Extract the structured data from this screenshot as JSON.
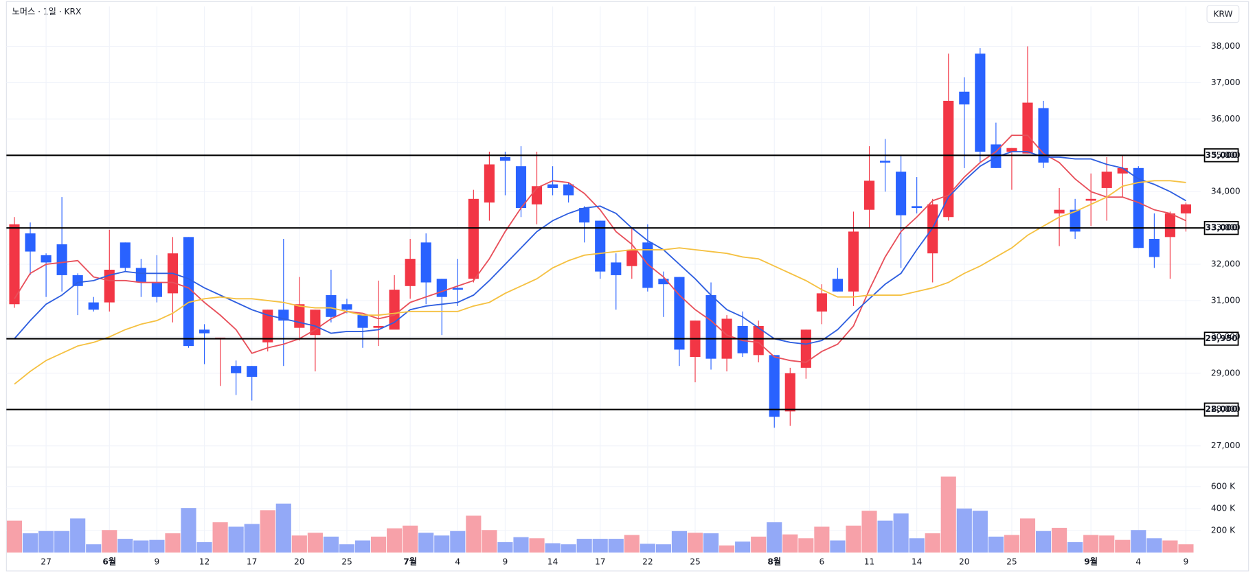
{
  "chart_data": {
    "type": "candlestick",
    "title": "노머스 · 1일 · KRX",
    "currency": "KRW",
    "categories": [
      null,
      null,
      "27",
      null,
      null,
      null,
      "6월",
      null,
      null,
      "9",
      null,
      null,
      "12",
      null,
      null,
      "17",
      null,
      null,
      "20",
      null,
      null,
      "25",
      null,
      null,
      null,
      "7월",
      null,
      null,
      "4",
      null,
      null,
      "9",
      null,
      null,
      "14",
      null,
      null,
      "17",
      null,
      null,
      "22",
      null,
      null,
      "25",
      null,
      null,
      null,
      null,
      "8월",
      null,
      null,
      "6",
      null,
      null,
      "11",
      null,
      null,
      "14",
      null,
      null,
      "20",
      null,
      null,
      "25",
      null,
      null,
      null,
      null,
      "9월",
      null,
      null,
      "4",
      null,
      null,
      "9"
    ],
    "open": [
      30900,
      32850,
      32250,
      32550,
      31700,
      30950,
      30950,
      32600,
      31900,
      31500,
      31200,
      32750,
      30200,
      29950,
      29200,
      29200,
      29850,
      30750,
      30250,
      30050,
      31150,
      30900,
      30600,
      30250,
      30200,
      31400,
      32600,
      31600,
      31350,
      31600,
      33700,
      34950,
      34700,
      33650,
      34200,
      34200,
      33550,
      33200,
      32050,
      31950,
      32600,
      31600,
      31650,
      29450,
      31150,
      29400,
      30300,
      29500,
      29500,
      27950,
      29150,
      30700,
      31600,
      31250,
      33500,
      34850,
      34550,
      33600,
      32300,
      33300,
      36750,
      37800,
      35300,
      35100,
      35050,
      36300,
      33400,
      33500,
      33750,
      34100,
      34500,
      34650,
      32700,
      32750,
      33400
    ],
    "high": [
      33300,
      33150,
      32300,
      33850,
      31750,
      31100,
      32950,
      32600,
      32150,
      32250,
      32750,
      32750,
      30350,
      29980,
      29350,
      29200,
      30750,
      32700,
      31650,
      30750,
      31850,
      31050,
      30600,
      31550,
      31700,
      32700,
      32850,
      31600,
      32150,
      34050,
      35100,
      35100,
      35250,
      35100,
      34700,
      34250,
      33600,
      33200,
      32300,
      33000,
      33100,
      31800,
      31650,
      30450,
      31500,
      30600,
      30700,
      30450,
      29500,
      29150,
      30200,
      31450,
      31900,
      33450,
      35250,
      35450,
      35000,
      34400,
      33800,
      37800,
      37150,
      37950,
      35900,
      35200,
      38000,
      36500,
      34100,
      33800,
      34500,
      34950,
      35000,
      34700,
      33400,
      33450,
      33700
    ],
    "low": [
      30800,
      31700,
      31100,
      31250,
      30600,
      30700,
      30700,
      31800,
      31100,
      30950,
      30400,
      29700,
      29250,
      28650,
      28400,
      28250,
      29600,
      29200,
      29900,
      29050,
      30400,
      30650,
      29700,
      29750,
      30250,
      31050,
      30900,
      30050,
      30850,
      31500,
      33200,
      33900,
      33300,
      33100,
      33900,
      33700,
      32600,
      31600,
      30750,
      31600,
      31250,
      30550,
      29200,
      28750,
      29100,
      29050,
      29450,
      29300,
      27500,
      27550,
      28850,
      30350,
      31250,
      30850,
      33000,
      34000,
      31900,
      33400,
      31500,
      33200,
      34650,
      34800,
      34650,
      34050,
      35050,
      34650,
      32500,
      32700,
      33050,
      33200,
      33850,
      32450,
      31900,
      31600,
      32900
    ],
    "close": [
      33100,
      32350,
      32050,
      31700,
      31400,
      30750,
      31850,
      31900,
      31500,
      31100,
      32300,
      29750,
      30100,
      29980,
      29000,
      28900,
      30750,
      30450,
      30900,
      30750,
      30550,
      30750,
      30250,
      30300,
      31300,
      32150,
      31500,
      31100,
      31300,
      33800,
      34750,
      34850,
      33550,
      34150,
      34100,
      33900,
      33150,
      31800,
      31700,
      32400,
      31350,
      31450,
      29650,
      30450,
      29400,
      30500,
      29550,
      30300,
      27800,
      29000,
      30200,
      31200,
      31250,
      32900,
      34300,
      34800,
      33350,
      33550,
      33650,
      36500,
      36400,
      35100,
      34650,
      35200,
      36450,
      34800,
      33500,
      32900,
      33800,
      34550,
      34650,
      32450,
      32200,
      33400,
      33650
    ],
    "up_color": "#f23645",
    "down_color": "#2962ff",
    "ylim": [
      26440,
      39100
    ],
    "yticks": [
      {
        "value": 27000,
        "label": "27,000"
      },
      {
        "value": 28000,
        "label": "28,000"
      },
      {
        "value": 29000,
        "label": "29,000"
      },
      {
        "value": 30000,
        "label": "30,000"
      },
      {
        "value": 31000,
        "label": "31,000"
      },
      {
        "value": 32000,
        "label": "32,000"
      },
      {
        "value": 33000,
        "label": "33,000"
      },
      {
        "value": 34000,
        "label": "34,000"
      },
      {
        "value": 35000,
        "label": "35,000"
      },
      {
        "value": 36000,
        "label": "36,000"
      },
      {
        "value": 37000,
        "label": "37,000"
      },
      {
        "value": 38000,
        "label": "38,000"
      }
    ],
    "levels": [
      {
        "value": 35000,
        "label": "35,000"
      },
      {
        "value": 33000,
        "label": "33,000"
      },
      {
        "value": 29950,
        "label": "29,950"
      },
      {
        "value": 28000,
        "label": "28,000"
      }
    ],
    "ma": [
      {
        "color": "#e8505b",
        "values": [
          31050,
          31750,
          32000,
          32050,
          32100,
          31650,
          31550,
          31550,
          31500,
          31500,
          31500,
          31350,
          30950,
          30600,
          30200,
          29550,
          29700,
          29800,
          29950,
          30200,
          30500,
          30700,
          30650,
          30500,
          30600,
          30950,
          31100,
          31250,
          31400,
          31550,
          32150,
          32900,
          33550,
          34100,
          34300,
          34250,
          33950,
          33500,
          32900,
          32550,
          32000,
          31650,
          31150,
          30750,
          30450,
          30050,
          29900,
          29850,
          29450,
          29350,
          29300,
          29600,
          29800,
          30300,
          31300,
          32200,
          32900,
          33300,
          33750,
          33900,
          34400,
          34800,
          35100,
          35550,
          35550,
          35050,
          34800,
          34350,
          34000,
          33850,
          33850,
          33700,
          33500,
          33400,
          33200
        ]
      },
      {
        "color": "#2f5fe0",
        "values": [
          29950,
          30450,
          30900,
          31150,
          31500,
          31550,
          31700,
          31800,
          31750,
          31750,
          31750,
          31600,
          31350,
          31150,
          30950,
          30750,
          30600,
          30500,
          30400,
          30300,
          30100,
          30150,
          30150,
          30200,
          30400,
          30750,
          30850,
          30900,
          30950,
          31150,
          31550,
          32000,
          32450,
          32900,
          33200,
          33400,
          33550,
          33600,
          33400,
          33000,
          32650,
          32400,
          32000,
          31600,
          31150,
          30750,
          30550,
          30250,
          29950,
          29850,
          29800,
          29900,
          30200,
          30650,
          31050,
          31450,
          31750,
          32400,
          33000,
          33850,
          34300,
          34700,
          34950,
          35100,
          35100,
          34950,
          34950,
          34900,
          34900,
          34750,
          34650,
          34350,
          34200,
          34000,
          33750
        ]
      },
      {
        "color": "#f5c142",
        "values": [
          28700,
          29050,
          29350,
          29550,
          29750,
          29850,
          30000,
          30200,
          30350,
          30450,
          30650,
          30950,
          31050,
          31100,
          31050,
          31050,
          31000,
          30950,
          30850,
          30800,
          30800,
          30700,
          30600,
          30600,
          30650,
          30700,
          30700,
          30700,
          30700,
          30850,
          30950,
          31200,
          31400,
          31600,
          31900,
          32100,
          32250,
          32300,
          32350,
          32400,
          32400,
          32400,
          32450,
          32400,
          32350,
          32300,
          32200,
          32150,
          31950,
          31750,
          31550,
          31300,
          31100,
          31100,
          31150,
          31150,
          31150,
          31250,
          31350,
          31500,
          31750,
          31950,
          32200,
          32450,
          32800,
          33050,
          33300,
          33450,
          33650,
          33850,
          34150,
          34250,
          34300,
          34300,
          34250
        ]
      }
    ],
    "volume": {
      "values": [
        290,
        175,
        195,
        195,
        310,
        75,
        205,
        125,
        110,
        115,
        175,
        405,
        95,
        275,
        235,
        260,
        385,
        445,
        155,
        180,
        145,
        75,
        110,
        145,
        220,
        245,
        180,
        155,
        195,
        335,
        205,
        95,
        140,
        130,
        85,
        75,
        125,
        125,
        125,
        160,
        80,
        75,
        195,
        180,
        175,
        65,
        100,
        145,
        275,
        165,
        130,
        235,
        110,
        245,
        380,
        290,
        355,
        130,
        175,
        690,
        400,
        380,
        145,
        160,
        310,
        195,
        225,
        95,
        160,
        155,
        115,
        205,
        130,
        110,
        75
      ],
      "up_color": "#f7a1a9",
      "down_color": "#93a9f7",
      "ylim": [
        0,
        770
      ],
      "yticks": [
        {
          "value": 200,
          "label": "200 K"
        },
        {
          "value": 400,
          "label": "400 K"
        },
        {
          "value": 600,
          "label": "600 K"
        }
      ]
    }
  }
}
